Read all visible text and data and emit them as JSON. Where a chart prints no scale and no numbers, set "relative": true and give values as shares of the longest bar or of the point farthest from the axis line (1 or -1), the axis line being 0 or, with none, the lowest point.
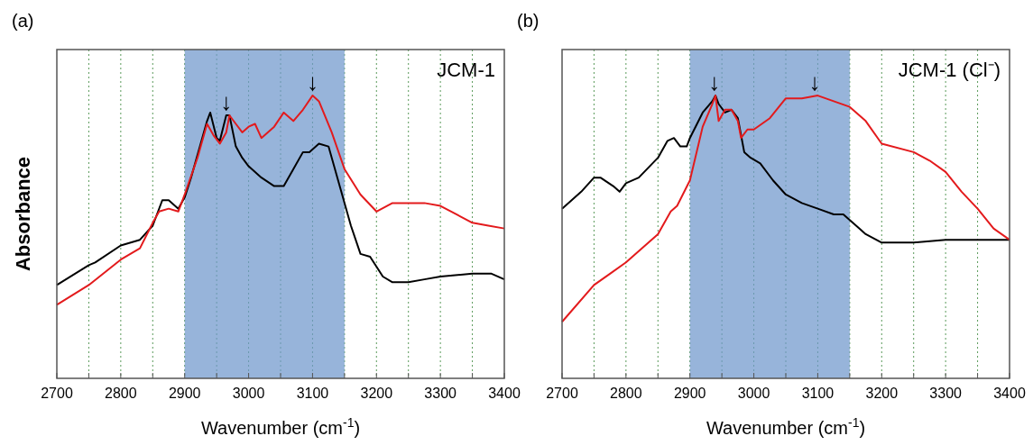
{
  "chart_data": [
    {
      "type": "line",
      "title": "(a)",
      "xlabel": "Wavenumber (cm$^{-1}$)",
      "ylabel": "Absorbance",
      "relative": true,
      "grid": "x",
      "xlim": [
        2700,
        3400
      ],
      "xticks": [
        2700,
        {
          "value": 2750,
          "label": null
        },
        2800,
        {
          "value": 2850,
          "label": null
        },
        2900,
        {
          "value": 2950,
          "label": null
        },
        3000,
        {
          "value": 3050,
          "label": null
        },
        3100,
        {
          "value": 3150,
          "label": null
        },
        3200,
        {
          "value": 3250,
          "label": null
        },
        3300,
        {
          "value": 3350,
          "label": null
        },
        3400
      ],
      "bands": [
        {
          "axis": "x",
          "from": 2900,
          "to": 3150,
          "color": "#6f97cc"
        }
      ],
      "annotations": [
        "JCM-1",
        {
          "text": "↓",
          "x": 2965,
          "y": 0.93
        },
        {
          "text": "↓",
          "x": 3100,
          "y": 1
        }
      ],
      "series": [
        {
          "color": "#000000",
          "x": [
            2700,
            2750,
            2760,
            2800,
            2830,
            2850,
            2865,
            2875,
            2890,
            2900,
            2910,
            2925,
            2935,
            2940,
            2950,
            2955,
            2965,
            2970,
            2980,
            2990,
            3000,
            3020,
            3040,
            3055,
            3070,
            3085,
            3095,
            3110,
            3125,
            3140,
            3160,
            3175,
            3190,
            3210,
            3225,
            3250,
            3275,
            3300,
            3350,
            3380,
            3400
          ],
          "values": [
            0.33,
            0.4,
            0.41,
            0.47,
            0.49,
            0.54,
            0.63,
            0.63,
            0.6,
            0.64,
            0.71,
            0.83,
            0.91,
            0.94,
            0.85,
            0.84,
            0.93,
            0.93,
            0.82,
            0.78,
            0.75,
            0.71,
            0.68,
            0.68,
            0.74,
            0.8,
            0.8,
            0.83,
            0.82,
            0.7,
            0.54,
            0.44,
            0.43,
            0.36,
            0.34,
            0.34,
            0.35,
            0.36,
            0.37,
            0.37,
            0.35
          ]
        },
        {
          "color": "#e31a1c",
          "x": [
            2700,
            2750,
            2800,
            2830,
            2850,
            2860,
            2875,
            2890,
            2900,
            2920,
            2935,
            2945,
            2955,
            2965,
            2970,
            2980,
            2990,
            3000,
            3010,
            3020,
            3040,
            3055,
            3070,
            3085,
            3100,
            3110,
            3130,
            3150,
            3175,
            3200,
            3225,
            3250,
            3275,
            3300,
            3325,
            3350,
            3375,
            3400
          ],
          "values": [
            0.26,
            0.33,
            0.42,
            0.46,
            0.55,
            0.59,
            0.6,
            0.59,
            0.65,
            0.78,
            0.9,
            0.86,
            0.83,
            0.87,
            0.93,
            0.9,
            0.87,
            0.89,
            0.9,
            0.85,
            0.89,
            0.94,
            0.91,
            0.95,
            1,
            0.98,
            0.87,
            0.74,
            0.65,
            0.59,
            0.62,
            0.62,
            0.62,
            0.61,
            0.58,
            0.55,
            0.54,
            0.53
          ]
        }
      ]
    },
    {
      "type": "line",
      "title": "(b)",
      "xlabel": "Wavenumber (cm$^{-1}$)",
      "relative": true,
      "grid": "x",
      "xlim": [
        2700,
        3400
      ],
      "xticks": [
        2700,
        {
          "value": 2750,
          "label": null
        },
        2800,
        {
          "value": 2850,
          "label": null
        },
        2900,
        {
          "value": 2950,
          "label": null
        },
        3000,
        {
          "value": 3050,
          "label": null
        },
        3100,
        {
          "value": 3150,
          "label": null
        },
        3200,
        {
          "value": 3250,
          "label": null
        },
        3300,
        {
          "value": 3350,
          "label": null
        },
        3400
      ],
      "bands": [
        {
          "axis": "x",
          "from": 2900,
          "to": 3150,
          "color": "#6f97cc"
        }
      ],
      "annotations": [
        "JCM-1 (Cl⁻)",
        {
          "text": "↓",
          "x": 2938,
          "y": 1
        },
        {
          "text": "↓",
          "x": 3095,
          "y": 1
        }
      ],
      "series": [
        {
          "color": "#000000",
          "x": [
            2700,
            2730,
            2750,
            2760,
            2780,
            2790,
            2800,
            2820,
            2850,
            2865,
            2875,
            2885,
            2895,
            2900,
            2920,
            2935,
            2940,
            2945,
            2955,
            2965,
            2975,
            2985,
            2995,
            3010,
            3030,
            3050,
            3075,
            3100,
            3125,
            3140,
            3150,
            3175,
            3200,
            3250,
            3300,
            3350,
            3400
          ],
          "values": [
            0.6,
            0.66,
            0.71,
            0.71,
            0.68,
            0.66,
            0.69,
            0.71,
            0.78,
            0.84,
            0.85,
            0.82,
            0.82,
            0.85,
            0.94,
            0.98,
            1,
            0.97,
            0.94,
            0.95,
            0.92,
            0.8,
            0.78,
            0.76,
            0.7,
            0.65,
            0.62,
            0.6,
            0.58,
            0.58,
            0.56,
            0.51,
            0.48,
            0.48,
            0.49,
            0.49,
            0.49
          ]
        },
        {
          "color": "#e31a1c",
          "x": [
            2700,
            2750,
            2775,
            2800,
            2850,
            2870,
            2880,
            2900,
            2920,
            2935,
            2940,
            2945,
            2955,
            2965,
            2975,
            2980,
            2990,
            3000,
            3025,
            3050,
            3075,
            3100,
            3125,
            3150,
            3175,
            3200,
            3250,
            3275,
            3300,
            3325,
            3350,
            3375,
            3400
          ],
          "values": [
            0.2,
            0.33,
            0.37,
            0.41,
            0.51,
            0.59,
            0.61,
            0.7,
            0.89,
            0.97,
            1,
            0.91,
            0.95,
            0.95,
            0.91,
            0.85,
            0.88,
            0.88,
            0.92,
            0.99,
            0.99,
            1,
            0.98,
            0.96,
            0.91,
            0.83,
            0.8,
            0.77,
            0.73,
            0.66,
            0.6,
            0.53,
            0.49
          ]
        }
      ]
    }
  ]
}
